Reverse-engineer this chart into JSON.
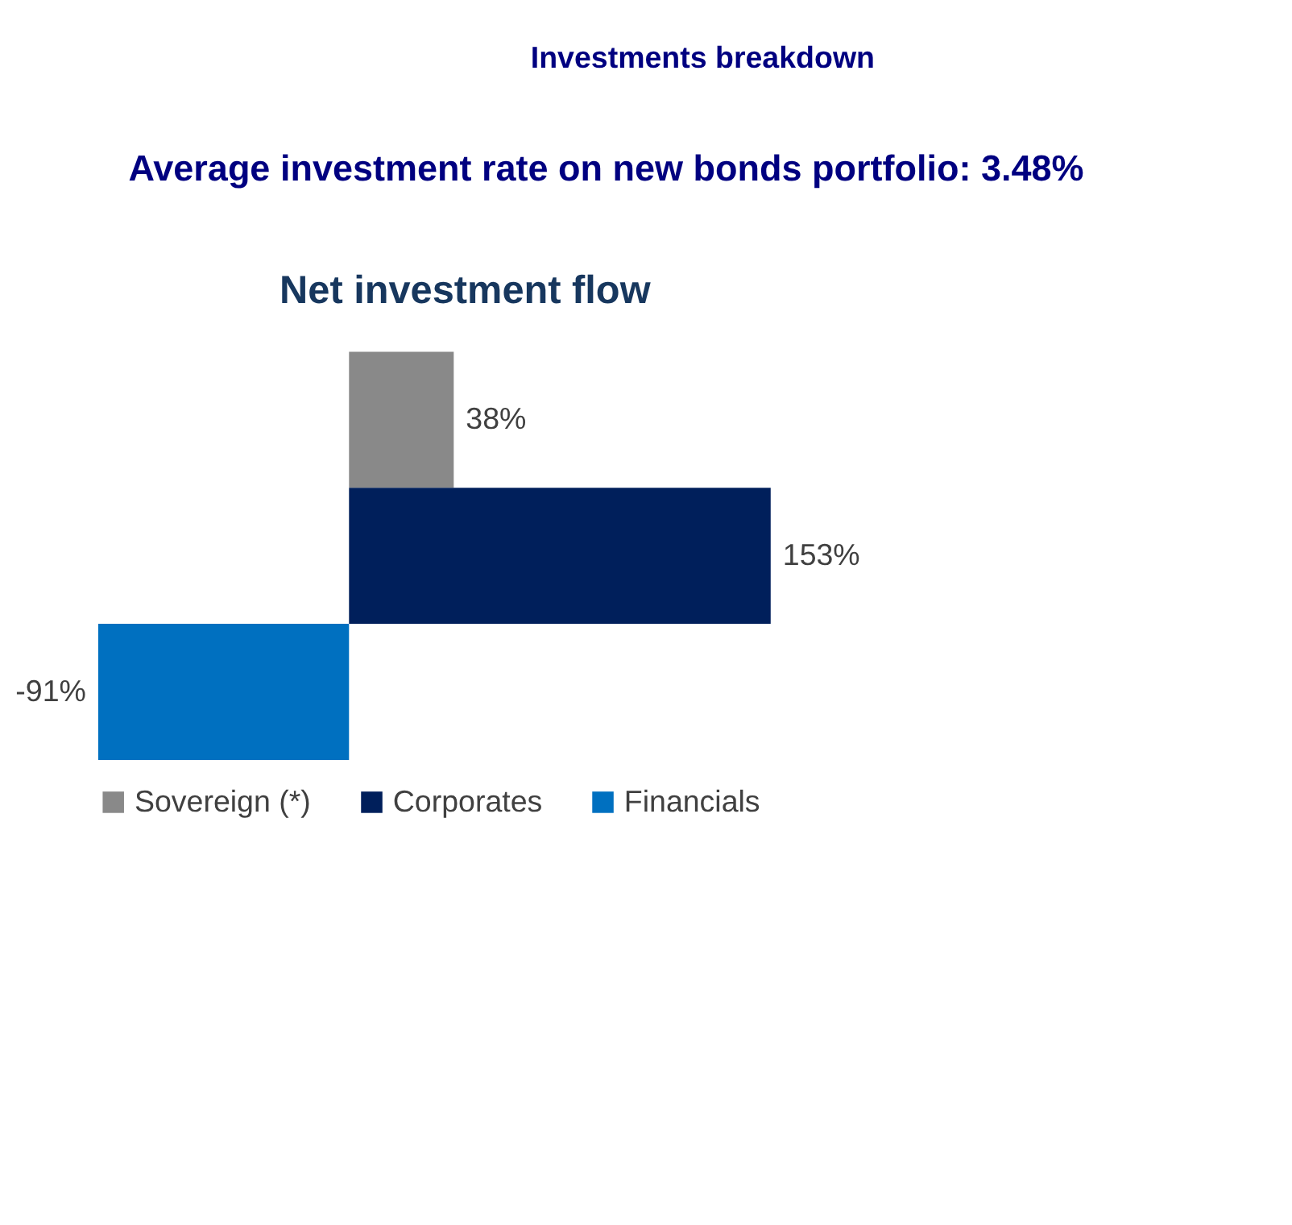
{
  "chart_data": {
    "type": "bar",
    "orientation": "horizontal",
    "title": "Investments breakdown",
    "subtitle": "Average investment rate on new bonds portfolio: 3.48%",
    "annotations": [
      "Net investment flow"
    ],
    "categories": [
      null
    ],
    "series": [
      {
        "name": "Sovereign (*)",
        "color": "#898989",
        "values": [
          38
        ],
        "value_labels": [
          "38%"
        ]
      },
      {
        "name": "Corporates",
        "color": "#001f5b",
        "values": [
          153
        ],
        "value_labels": [
          "153%"
        ]
      },
      {
        "name": "Financials",
        "color": "#0070c0",
        "values": [
          -91
        ],
        "value_labels": [
          "-91%"
        ]
      }
    ],
    "legend": "bottom",
    "grid": false
  }
}
